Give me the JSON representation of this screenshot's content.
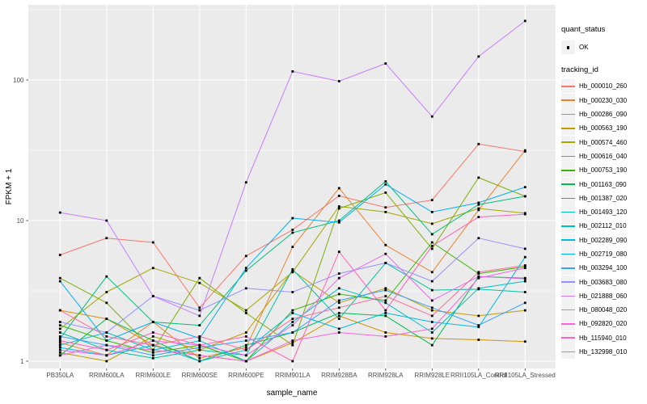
{
  "legend": {
    "quant_status_title": "quant_status",
    "quant_status_items": [
      {
        "label": "OK",
        "marker": "black-square-point"
      }
    ],
    "tracking_id_title": "tracking_id"
  },
  "axes": {
    "x_title": "sample_name",
    "y_title": "FPKM + 1",
    "y_tick_labels": [
      "1",
      "10",
      "100"
    ]
  },
  "chart_data": {
    "type": "line",
    "title": "",
    "xlabel": "sample_name",
    "ylabel": "FPKM + 1",
    "y_scale": "log10",
    "ylim": [
      1,
      400
    ],
    "y_major_ticks": [
      1,
      10,
      100
    ],
    "y_minor_ticks": [
      3.162,
      31.62,
      316.2
    ],
    "grid": "white-on-gray",
    "legend_position": "right",
    "panel_background": "#EBEBEB",
    "grid_color": "#FFFFFF",
    "tick_label_color": "#4D4D4D",
    "point_marker": {
      "shape": "square",
      "color": "#000000",
      "size": 2.8
    },
    "categories": [
      "PB350LA",
      "RRIM600LA",
      "RRIM600LE",
      "RRIM600SE",
      "RRIM600PE",
      "RRIM901LA",
      "RRIM928BA",
      "RRIM928LA",
      "RRIM928LE",
      "RRII105LA_Control",
      "RRII105LA_Stressed"
    ],
    "series": [
      {
        "name": "Hb_000010_260",
        "color": "#F8766D",
        "values": [
          5.7,
          7.5,
          7.0,
          2.4,
          5.6,
          8.6,
          15.0,
          12.4,
          14.0,
          35.0,
          31.0
        ]
      },
      {
        "name": "Hb_000230_030",
        "color": "#EA8331",
        "values": [
          1.35,
          1.1,
          1.9,
          1.05,
          1.25,
          6.5,
          17.0,
          6.7,
          4.3,
          11.9,
          31.6
        ]
      },
      {
        "name": "Hb_000286_090",
        "color": "#D89000",
        "values": [
          2.3,
          2.0,
          1.3,
          1.1,
          1.0,
          1.35,
          2.1,
          1.6,
          1.45,
          1.42,
          1.38
        ]
      },
      {
        "name": "Hb_000563_190",
        "color": "#C09B00",
        "values": [
          1.15,
          1.0,
          1.5,
          1.2,
          1.6,
          4.4,
          2.6,
          3.3,
          2.3,
          2.1,
          2.3
        ]
      },
      {
        "name": "Hb_000574_460",
        "color": "#A3A500",
        "values": [
          1.7,
          3.1,
          4.6,
          3.6,
          2.3,
          4.3,
          12.6,
          11.5,
          9.5,
          12.2,
          11.3
        ]
      },
      {
        "name": "Hb_000616_040",
        "color": "#7CAE00",
        "values": [
          3.9,
          2.6,
          1.2,
          3.9,
          2.2,
          1.3,
          12.2,
          15.8,
          6.3,
          20.2,
          14.9
        ]
      },
      {
        "name": "Hb_000753_190",
        "color": "#39B600",
        "values": [
          1.8,
          1.4,
          1.15,
          1.3,
          1.0,
          2.3,
          3.0,
          2.7,
          7.0,
          4.2,
          4.7
        ]
      },
      {
        "name": "Hb_001163_090",
        "color": "#00BB4E",
        "values": [
          1.1,
          2.0,
          1.4,
          1.0,
          1.3,
          1.6,
          2.2,
          2.1,
          1.3,
          4.0,
          3.9
        ]
      },
      {
        "name": "Hb_001387_020",
        "color": "#00BF7D",
        "values": [
          1.45,
          4.0,
          1.9,
          1.8,
          4.4,
          8.2,
          10.0,
          19.0,
          8.0,
          13.0,
          14.9
        ]
      },
      {
        "name": "Hb_001493_120",
        "color": "#00C1A3",
        "values": [
          1.6,
          1.2,
          1.05,
          1.2,
          1.1,
          4.5,
          2.0,
          5.0,
          3.2,
          3.25,
          3.1
        ]
      },
      {
        "name": "Hb_002112_010",
        "color": "#00BFC4",
        "values": [
          1.3,
          1.6,
          1.2,
          1.4,
          1.0,
          1.9,
          3.3,
          2.6,
          1.6,
          3.3,
          3.7
        ]
      },
      {
        "name": "Hb_002289_090",
        "color": "#00BAE0",
        "values": [
          1.25,
          1.1,
          1.3,
          1.0,
          1.2,
          2.2,
          1.7,
          2.2,
          1.9,
          1.75,
          5.5
        ]
      },
      {
        "name": "Hb_002719_080",
        "color": "#00B0F6",
        "values": [
          3.7,
          1.4,
          1.9,
          1.45,
          4.6,
          10.4,
          9.7,
          18.1,
          11.5,
          13.4,
          17.3
        ]
      },
      {
        "name": "Hb_003294_100",
        "color": "#35A2FF",
        "values": [
          1.5,
          1.3,
          1.1,
          1.25,
          1.4,
          1.6,
          2.7,
          3.2,
          2.4,
          1.8,
          2.6
        ]
      },
      {
        "name": "Hb_003683_080",
        "color": "#9590FF",
        "values": [
          1.9,
          1.6,
          2.9,
          2.3,
          3.3,
          3.1,
          4.2,
          5.0,
          3.7,
          7.5,
          6.3
        ]
      },
      {
        "name": "Hb_021888_060",
        "color": "#C77CFF",
        "values": [
          11.4,
          10.0,
          2.9,
          2.1,
          18.7,
          115.0,
          98.0,
          131.0,
          55.0,
          147.0,
          263.0
        ]
      },
      {
        "name": "Hb_080048_020",
        "color": "#E76BF3",
        "values": [
          1.2,
          1.1,
          1.4,
          1.3,
          1.1,
          1.8,
          3.9,
          5.8,
          2.7,
          4.0,
          3.85
        ]
      },
      {
        "name": "Hb_092820_020",
        "color": "#FA62DB",
        "values": [
          1.1,
          1.3,
          1.2,
          1.1,
          1.0,
          1.4,
          1.6,
          1.5,
          1.7,
          3.9,
          4.6
        ]
      },
      {
        "name": "Hb_115940_010",
        "color": "#FF62BC",
        "values": [
          1.4,
          1.2,
          1.6,
          1.3,
          1.5,
          1.0,
          6.0,
          2.3,
          6.6,
          10.6,
          11.1
        ]
      },
      {
        "name": "Hb_132998_010",
        "color": "#FF6A98",
        "values": [
          2.3,
          1.5,
          1.3,
          1.5,
          1.2,
          2.0,
          2.4,
          2.9,
          2.1,
          4.3,
          4.8
        ]
      }
    ]
  }
}
